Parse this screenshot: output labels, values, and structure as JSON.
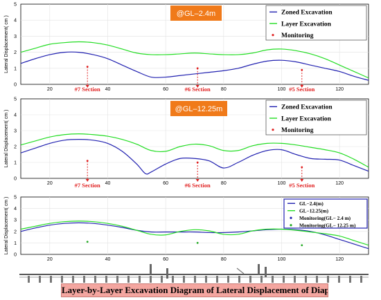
{
  "chart_data": [
    {
      "type": "line",
      "tag": "@GL–2.4m",
      "ylabel": "Lateral Displacement( cm )",
      "xlim": [
        10,
        130
      ],
      "ylim": [
        0,
        5
      ],
      "xticks": [
        20,
        40,
        60,
        80,
        100,
        120
      ],
      "yticks": [
        0,
        1,
        2,
        3,
        4,
        5
      ],
      "legend_position": "top-right",
      "series": [
        {
          "name": "Zoned Excavation",
          "color": "#2020b0",
          "x": [
            10,
            15,
            20,
            25,
            30,
            35,
            40,
            45,
            50,
            55,
            60,
            65,
            70,
            75,
            80,
            85,
            90,
            95,
            100,
            105,
            110,
            115,
            120,
            125,
            130
          ],
          "values": [
            1.3,
            1.6,
            1.85,
            2.0,
            2.0,
            1.85,
            1.6,
            1.2,
            0.8,
            0.45,
            0.45,
            0.55,
            0.65,
            0.75,
            0.85,
            1.0,
            1.25,
            1.45,
            1.5,
            1.4,
            1.2,
            1.0,
            0.8,
            0.5,
            0.25
          ]
        },
        {
          "name": "Layer Excavation",
          "color": "#22dd22",
          "x": [
            10,
            15,
            20,
            25,
            30,
            35,
            40,
            45,
            50,
            55,
            60,
            65,
            70,
            75,
            80,
            85,
            90,
            95,
            100,
            105,
            110,
            115,
            120,
            125,
            130
          ],
          "values": [
            2.0,
            2.25,
            2.5,
            2.6,
            2.65,
            2.6,
            2.45,
            2.2,
            1.95,
            1.85,
            1.85,
            1.9,
            1.95,
            1.9,
            1.85,
            1.85,
            1.95,
            2.15,
            2.2,
            2.1,
            1.9,
            1.6,
            1.2,
            0.8,
            0.4
          ]
        },
        {
          "name": "Monitoring",
          "color": "#e02020",
          "style": "points",
          "x": [
            33,
            71,
            107
          ],
          "values": [
            1.1,
            1.0,
            0.9
          ]
        }
      ],
      "sections": [
        {
          "label": "#7 Section",
          "x": 33
        },
        {
          "label": "#6 Section",
          "x": 71
        },
        {
          "label": "#5 Section",
          "x": 107
        }
      ]
    },
    {
      "type": "line",
      "tag": "@GL–12.25m",
      "ylabel": "Lateral Displacement( cm )",
      "xlim": [
        10,
        130
      ],
      "ylim": [
        0,
        5
      ],
      "xticks": [
        20,
        40,
        60,
        80,
        100,
        120
      ],
      "yticks": [
        0,
        1,
        2,
        3,
        4,
        5
      ],
      "legend_position": "top-right",
      "series": [
        {
          "name": "Zoned Excavation",
          "color": "#2020b0",
          "x": [
            10,
            15,
            20,
            25,
            30,
            35,
            40,
            45,
            50,
            53,
            55,
            60,
            65,
            70,
            75,
            80,
            85,
            90,
            95,
            100,
            105,
            110,
            115,
            120,
            125,
            130
          ],
          "values": [
            1.6,
            1.9,
            2.2,
            2.4,
            2.45,
            2.4,
            2.2,
            1.7,
            0.9,
            0.3,
            0.4,
            0.9,
            1.25,
            1.25,
            1.1,
            0.65,
            1.0,
            1.45,
            1.75,
            1.8,
            1.5,
            1.25,
            1.2,
            1.15,
            0.8,
            0.45
          ]
        },
        {
          "name": "Layer Excavation",
          "color": "#22dd22",
          "x": [
            10,
            15,
            20,
            25,
            30,
            35,
            40,
            45,
            50,
            55,
            60,
            65,
            70,
            75,
            80,
            85,
            90,
            95,
            100,
            105,
            110,
            115,
            120,
            125,
            130
          ],
          "values": [
            2.1,
            2.35,
            2.6,
            2.75,
            2.8,
            2.75,
            2.65,
            2.45,
            2.15,
            1.75,
            1.7,
            2.0,
            2.15,
            2.05,
            1.75,
            1.75,
            2.05,
            2.2,
            2.2,
            2.1,
            1.95,
            1.8,
            1.6,
            1.2,
            0.7
          ]
        },
        {
          "name": "Monitoring",
          "color": "#e02020",
          "style": "points",
          "x": [
            33,
            71,
            107
          ],
          "values": [
            1.1,
            1.0,
            0.7
          ]
        }
      ],
      "sections": [
        {
          "label": "#7 Section",
          "x": 33
        },
        {
          "label": "#6 Section",
          "x": 71
        },
        {
          "label": "#5 Section",
          "x": 107
        }
      ]
    },
    {
      "type": "line",
      "ylabel": "Lateral Displacement( cm )",
      "xlim": [
        10,
        130
      ],
      "ylim": [
        0,
        5
      ],
      "xticks": [
        20,
        40,
        60,
        80,
        100,
        120
      ],
      "yticks": [
        0,
        1,
        2,
        3,
        4,
        5
      ],
      "legend_position": "top-right",
      "series": [
        {
          "name": "GL−2.4(m)",
          "color": "#2020b0",
          "x": [
            10,
            15,
            20,
            25,
            30,
            35,
            40,
            45,
            50,
            55,
            60,
            65,
            70,
            75,
            80,
            85,
            90,
            95,
            100,
            105,
            110,
            115,
            120,
            125,
            130
          ],
          "values": [
            2.0,
            2.3,
            2.55,
            2.7,
            2.75,
            2.7,
            2.55,
            2.35,
            2.1,
            1.95,
            1.95,
            1.95,
            1.95,
            1.9,
            1.9,
            1.95,
            2.05,
            2.15,
            2.2,
            2.15,
            2.0,
            1.7,
            1.3,
            0.9,
            0.5
          ]
        },
        {
          "name": "GL−12.25(m)",
          "color": "#22dd22",
          "x": [
            10,
            15,
            20,
            25,
            30,
            35,
            40,
            45,
            50,
            55,
            60,
            65,
            70,
            75,
            80,
            85,
            90,
            95,
            100,
            105,
            110,
            115,
            120,
            125,
            130
          ],
          "values": [
            2.2,
            2.45,
            2.7,
            2.85,
            2.9,
            2.85,
            2.7,
            2.45,
            2.1,
            1.75,
            1.7,
            2.0,
            2.15,
            2.05,
            1.75,
            1.75,
            2.05,
            2.2,
            2.2,
            2.1,
            1.95,
            1.8,
            1.6,
            1.2,
            0.8
          ]
        },
        {
          "name": "Monitoring(GL− 2.4 m)",
          "color": "#2020b0",
          "style": "points",
          "x": [],
          "values": []
        },
        {
          "name": "Monitoring(GL− 12.25 m)",
          "color": "#22aa22",
          "style": "points",
          "x": [
            33,
            71,
            107
          ],
          "values": [
            1.1,
            1.0,
            0.8
          ]
        }
      ]
    }
  ],
  "caption": "Layer-by-Layer Excavation Diagram of Lateral Displacement of Diaphragm Wall"
}
